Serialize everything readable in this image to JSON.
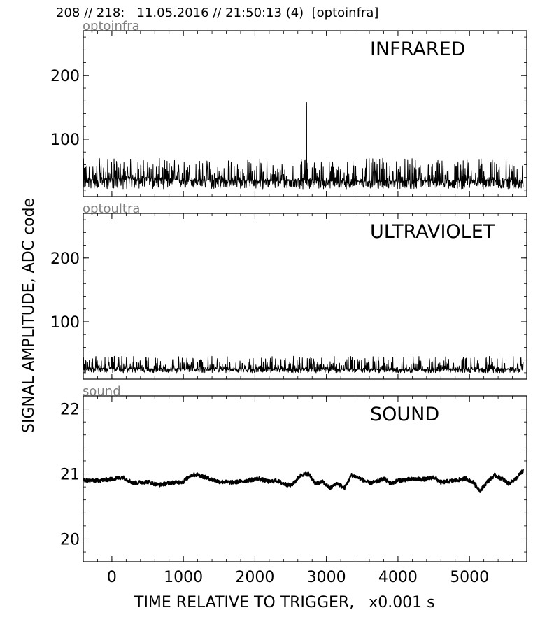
{
  "header": "208 // 218:   11.05.2016 // 21:50:13 (4)  [optoinfra]",
  "ylabel": "SIGNAL AMPLITUDE,  ADC code",
  "xlabel": "TIME RELATIVE TO TRIGGER,   x0.001 s",
  "chart_data": [
    {
      "type": "line",
      "source": "optoinfra",
      "title": "INFRARED",
      "xlim": [
        -400,
        5800
      ],
      "ylim": [
        10,
        270
      ],
      "yticks": [
        100,
        200
      ],
      "xticks": [
        0,
        1000,
        2000,
        3000,
        4000,
        5000
      ],
      "series": [
        {
          "x": [
            -400,
            0,
            500,
            1000,
            1500,
            2000,
            2500,
            2700,
            2720,
            2740,
            3000,
            3500,
            4000,
            4500,
            5000,
            5500,
            5750
          ],
          "y": [
            36,
            38,
            39,
            36,
            36,
            35,
            35,
            36,
            158,
            36,
            34,
            34,
            34,
            35,
            35,
            36,
            35
          ],
          "noise_min": 22,
          "noise_max": 70
        }
      ]
    },
    {
      "type": "line",
      "source": "optoultra",
      "title": "ULTRAVIOLET",
      "xlim": [
        -400,
        5800
      ],
      "ylim": [
        10,
        270
      ],
      "yticks": [
        100,
        200
      ],
      "xticks": [
        0,
        1000,
        2000,
        3000,
        4000,
        5000
      ],
      "series": [
        {
          "x": [
            -400,
            0,
            1000,
            2000,
            3000,
            4000,
            5000,
            5750
          ],
          "y": [
            26,
            27,
            26,
            26,
            26,
            25,
            26,
            26
          ],
          "noise_min": 20,
          "noise_max": 46
        }
      ]
    },
    {
      "type": "line",
      "source": "sound",
      "title": "SOUND",
      "xlim": [
        -400,
        5800
      ],
      "ylim": [
        19.65,
        22.2
      ],
      "yticks": [
        20,
        21,
        22
      ],
      "xticks": [
        0,
        1000,
        2000,
        3000,
        4000,
        5000
      ],
      "series": [
        {
          "x": [
            -400,
            -200,
            0,
            150,
            300,
            500,
            650,
            800,
            1000,
            1100,
            1200,
            1350,
            1500,
            1700,
            1900,
            2050,
            2200,
            2300,
            2400,
            2500,
            2550,
            2650,
            2750,
            2850,
            2950,
            3050,
            3150,
            3250,
            3350,
            3450,
            3600,
            3700,
            3800,
            3900,
            4000,
            4200,
            4400,
            4500,
            4600,
            4800,
            4950,
            5050,
            5150,
            5250,
            5350,
            5450,
            5550,
            5650,
            5750
          ],
          "y": [
            20.9,
            20.9,
            20.92,
            20.95,
            20.86,
            20.88,
            20.83,
            20.86,
            20.88,
            20.98,
            20.99,
            20.93,
            20.88,
            20.87,
            20.9,
            20.93,
            20.88,
            20.9,
            20.85,
            20.82,
            20.87,
            20.99,
            21.0,
            20.85,
            20.88,
            20.78,
            20.86,
            20.78,
            20.98,
            20.94,
            20.86,
            20.88,
            20.93,
            20.85,
            20.9,
            20.92,
            20.92,
            20.95,
            20.87,
            20.9,
            20.93,
            20.87,
            20.74,
            20.88,
            20.98,
            20.93,
            20.85,
            20.93,
            21.05
          ],
          "noise_min": -0.03,
          "noise_max": 0.03
        }
      ]
    }
  ]
}
